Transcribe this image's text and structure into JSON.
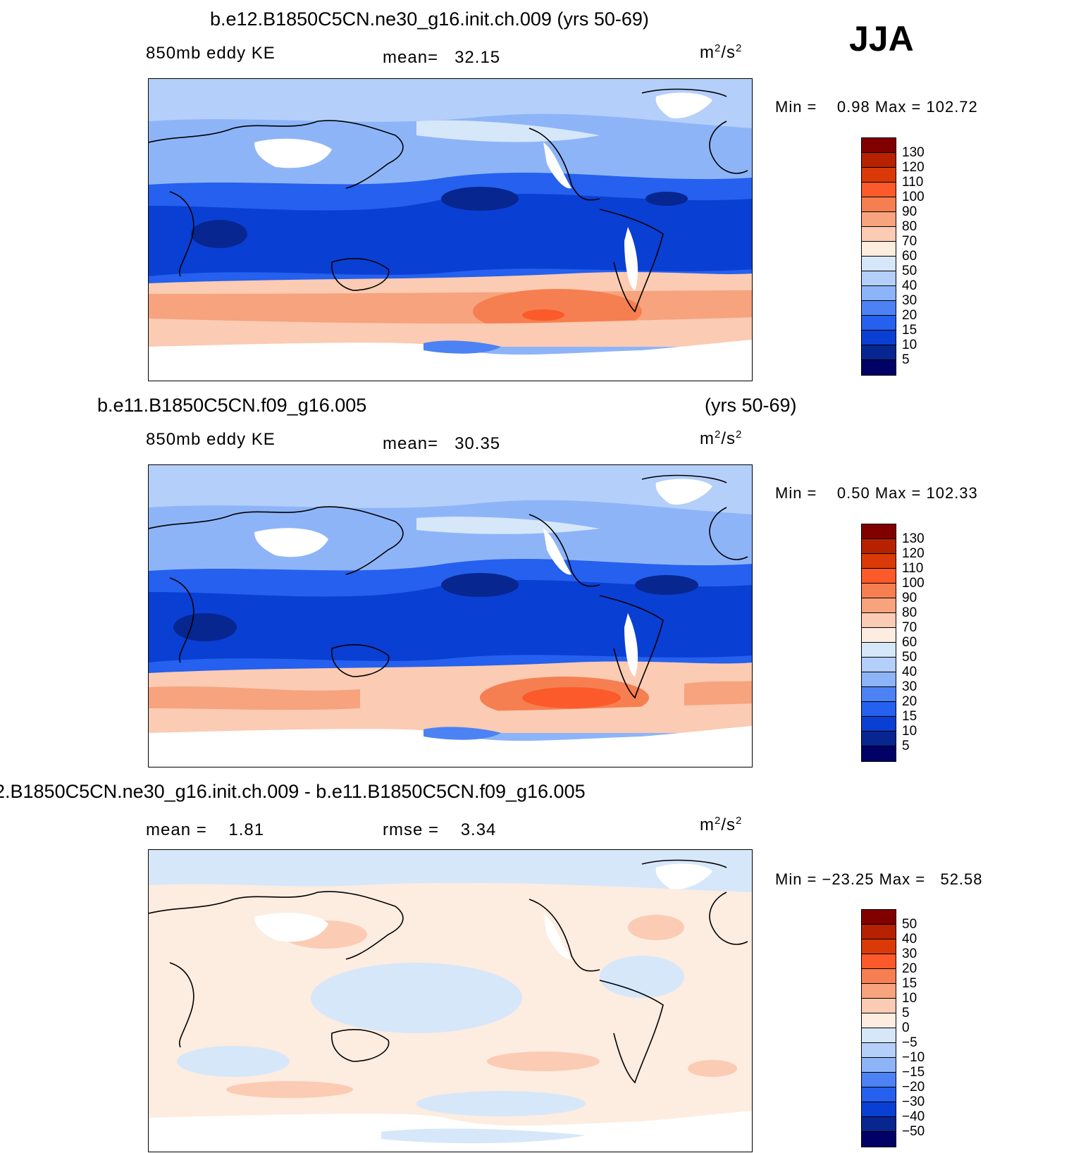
{
  "season": "JJA",
  "panels": [
    {
      "id": "case",
      "title": "b.e12.B1850C5CN.ne30_g16.init.ch.009 (yrs 50-69)",
      "title_right": "",
      "left_label": "850mb eddy KE",
      "mid_label": "mean=",
      "mid_value": "32.15",
      "rmse_label": "",
      "rmse_value": "",
      "units": "m",
      "units_sup": "2",
      "units_mid": "/s",
      "units_sup2": "2",
      "min_label": "Min =",
      "min_value": "0.98",
      "max_label": "Max =",
      "max_value": "102.72",
      "colorbar_labels": [
        "130",
        "120",
        "110",
        "100",
        "90",
        "80",
        "70",
        "60",
        "50",
        "40",
        "30",
        "20",
        "15",
        "10",
        "5"
      ]
    },
    {
      "id": "control",
      "title": "b.e11.B1850C5CN.f09_g16.005",
      "title_right": "(yrs 50-69)",
      "left_label": "850mb eddy KE",
      "mid_label": "mean=",
      "mid_value": "30.35",
      "rmse_label": "",
      "rmse_value": "",
      "units": "m",
      "units_sup": "2",
      "units_mid": "/s",
      "units_sup2": "2",
      "min_label": "Min =",
      "min_value": "0.50",
      "max_label": "Max =",
      "max_value": "102.33",
      "colorbar_labels": [
        "130",
        "120",
        "110",
        "100",
        "90",
        "80",
        "70",
        "60",
        "50",
        "40",
        "30",
        "20",
        "15",
        "10",
        "5"
      ]
    },
    {
      "id": "difference",
      "title": "2.B1850C5CN.ne30_g16.init.ch.009 - b.e11.B1850C5CN.f09_g16.005",
      "title_right": "",
      "left_label": "mean =",
      "left_value": "1.81",
      "mid_label": "rmse =",
      "mid_value": "3.34",
      "units": "m",
      "units_sup": "2",
      "units_mid": "/s",
      "units_sup2": "2",
      "min_label": "Min =",
      "min_value": "−23.25",
      "max_label": "Max =",
      "max_value": "52.58",
      "colorbar_labels": [
        "50",
        "40",
        "30",
        "20",
        "15",
        "10",
        "5",
        "0",
        "−5",
        "−10",
        "−15",
        "−20",
        "−30",
        "−40",
        "−50"
      ]
    }
  ],
  "colorbar_colors": [
    "#800000",
    "#b62200",
    "#d93a08",
    "#fc5a2a",
    "#f57f50",
    "#f6a37e",
    "#fbcbb3",
    "#fdece0",
    "#d6e7fa",
    "#b4cffa",
    "#8eb4f8",
    "#4c82f4",
    "#2560ee",
    "#0a3fd4",
    "#07268f",
    "#000066"
  ],
  "map_colors": {
    "white": "#ffffff",
    "pale_blue": "#d6e7fa",
    "light_blue": "#b4cffa",
    "mid_blue": "#8eb4f8",
    "blue": "#4c82f4",
    "strong_blue": "#2560ee",
    "deep_blue": "#0a3fd4",
    "navy": "#07268f",
    "peach": "#fbcbb3",
    "salmon": "#f6a37e",
    "orange": "#f57f50",
    "red_orange": "#fc5a2a",
    "cream": "#fdece0"
  }
}
